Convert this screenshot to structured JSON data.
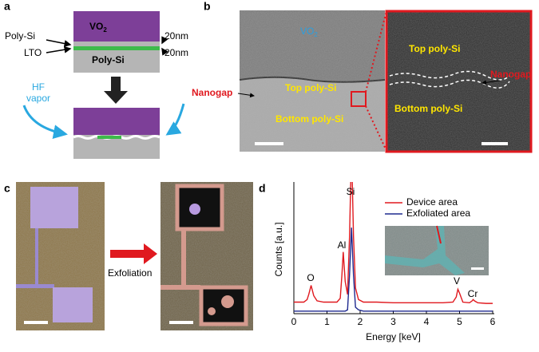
{
  "panel_a": {
    "label": "a",
    "top_layer": "VO",
    "top_layer_sub": "2",
    "left_labels": [
      "Poly-Si",
      "LTO"
    ],
    "right_labels": [
      "20nm",
      "20nm"
    ],
    "substrate": "Poly-Si",
    "etchant": [
      "HF",
      "vapor"
    ]
  },
  "panel_b": {
    "label": "b",
    "vo2": "VO",
    "vo2_sub": "2",
    "top": "Top poly-Si",
    "bottom": "Bottom poly-Si",
    "nanogap": "Nanogap",
    "inset_top": "Top poly-Si",
    "inset_bottom": "Bottom poly-Si",
    "inset_nanogap": "Nanogap"
  },
  "panel_c": {
    "label": "c",
    "arrow_label": "Exfoliation"
  },
  "panel_d": {
    "label": "d"
  },
  "chart_data": {
    "type": "line",
    "x_label": "Energy [keV]",
    "y_label": "Counts [a.u.]",
    "xlim": [
      0,
      6
    ],
    "xticks": [
      0,
      1,
      2,
      3,
      4,
      5,
      6
    ],
    "ylim": [
      0,
      100
    ],
    "legend": "top right",
    "x": [
      0,
      0.1,
      0.2,
      0.3,
      0.4,
      0.45,
      0.52,
      0.6,
      0.7,
      0.9,
      1.1,
      1.3,
      1.4,
      1.45,
      1.49,
      1.55,
      1.62,
      1.68,
      1.74,
      1.8,
      1.86,
      1.95,
      2.1,
      2.5,
      3,
      3.5,
      4,
      4.5,
      4.8,
      4.9,
      4.95,
      5.0,
      5.1,
      5.3,
      5.38,
      5.41,
      5.45,
      5.55,
      5.8,
      6.0
    ],
    "series": [
      {
        "name": "Device area",
        "color": "#e0191f",
        "values": [
          9,
          9,
          9,
          9,
          11,
          15,
          22,
          14,
          10,
          9,
          9,
          9,
          12,
          30,
          48,
          25,
          15,
          60,
          130,
          60,
          20,
          11,
          9,
          9,
          8.5,
          8.5,
          8.5,
          8.5,
          9,
          13,
          19,
          16,
          9,
          8.5,
          10,
          11,
          10,
          8.5,
          8,
          8
        ]
      },
      {
        "name": "Exfoliated area",
        "color": "#1f2a8f",
        "values": [
          2,
          2,
          2,
          2,
          2,
          2,
          2,
          2,
          2,
          2,
          2,
          2,
          2,
          2,
          2,
          2,
          3,
          30,
          67,
          30,
          5,
          3,
          2,
          2,
          2,
          2,
          2,
          2,
          2,
          2,
          2,
          2,
          2,
          2,
          2,
          2,
          2,
          2,
          2,
          2
        ]
      }
    ],
    "annotations": [
      "O",
      "Al",
      "Si",
      "V",
      "Cr"
    ]
  }
}
